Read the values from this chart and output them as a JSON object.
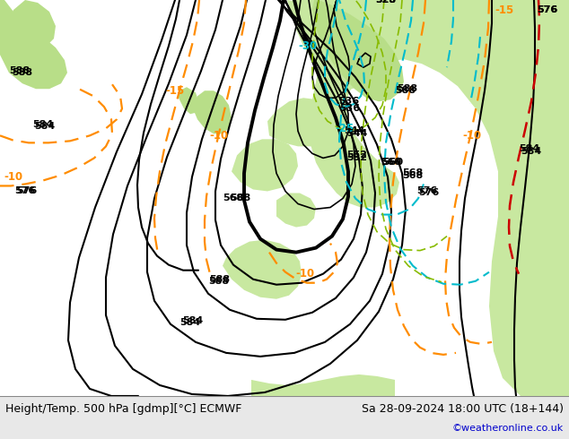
{
  "title_left": "Height/Temp. 500 hPa [gdmp][°C] ECMWF",
  "title_right": "Sa 28-09-2024 18:00 UTC (18+144)",
  "copyright": "©weatheronline.co.uk",
  "fig_width": 6.34,
  "fig_height": 4.9,
  "dpi": 100,
  "map_bg": "#d0cec8",
  "land_green": "#c8e8a0",
  "land_green2": "#b8de88",
  "sea_gray": "#c0beb8",
  "bottom_bg": "#e8e8e8",
  "height_color": "#000000",
  "orange_color": "#FF8C00",
  "cyan_color": "#00BBCC",
  "green_temp_color": "#88BB00",
  "red_color": "#CC0000"
}
